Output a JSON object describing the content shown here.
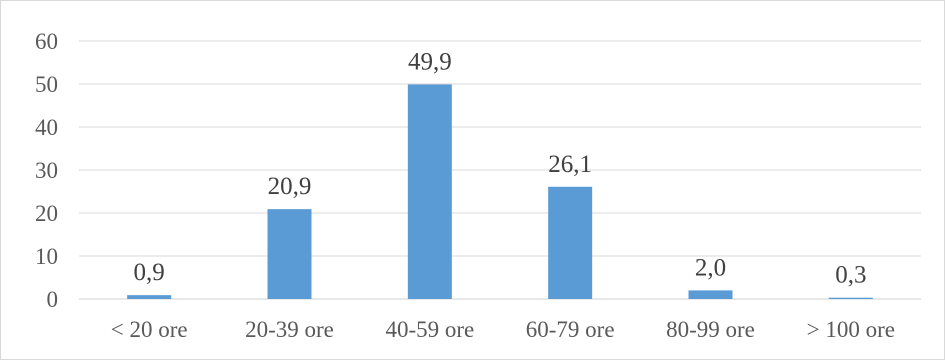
{
  "chart_data": {
    "type": "bar",
    "categories": [
      "< 20 ore",
      "20-39 ore",
      "40-59 ore",
      "60-79 ore",
      "80-99 ore",
      "> 100 ore"
    ],
    "values": [
      0.9,
      20.9,
      49.9,
      26.1,
      2.0,
      0.3
    ],
    "data_labels": [
      "0,9",
      "20,9",
      "49,9",
      "26,1",
      "2,0",
      "0,3"
    ],
    "y_ticks": [
      0,
      10,
      20,
      30,
      40,
      50,
      60
    ],
    "ylim": [
      0,
      60
    ],
    "grid": true,
    "bar_color": "#5b9bd5",
    "legend": "none"
  }
}
